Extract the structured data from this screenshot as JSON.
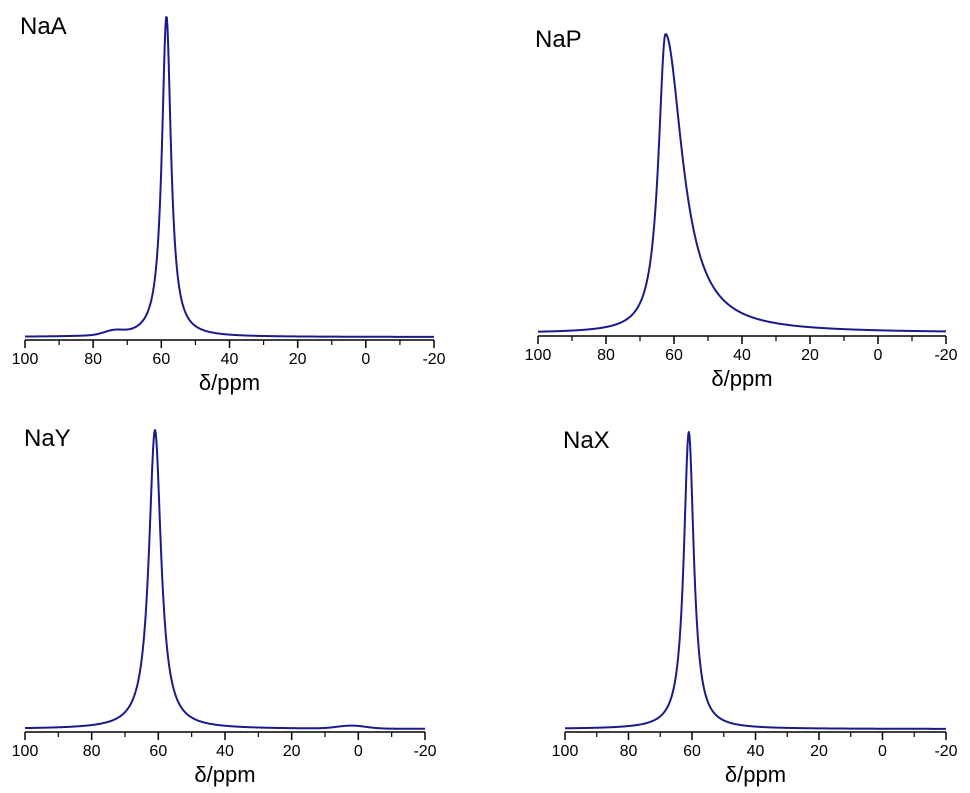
{
  "chart_data": [
    {
      "type": "line",
      "panel_label": "NaA",
      "xlabel": "δ/ppm",
      "xlim": [
        100,
        -20
      ],
      "xticks": [
        100,
        80,
        60,
        40,
        20,
        0,
        -20
      ],
      "x_reversed": true,
      "y_axis_shown": false,
      "line_color": "#1a1a8c",
      "peak": {
        "position_ppm": 58.5,
        "hwhm_ppm": 1.6,
        "height": 1.0
      },
      "baseline": 0.0,
      "shoulders": [
        {
          "position_ppm": 74,
          "width_ppm": 4,
          "height": 0.012
        }
      ]
    },
    {
      "type": "line",
      "panel_label": "NaP",
      "xlabel": "δ/ppm",
      "xlim": [
        100,
        -20
      ],
      "xticks": [
        100,
        80,
        60,
        40,
        20,
        0,
        -20
      ],
      "x_reversed": true,
      "y_axis_shown": false,
      "line_color": "#1a1a8c",
      "peak": {
        "position_ppm": 62.5,
        "hwhm_left_ppm": 2.5,
        "hwhm_right_ppm": 6.0,
        "height": 1.0
      },
      "baseline": 0.0,
      "shoulders": []
    },
    {
      "type": "line",
      "panel_label": "NaY",
      "xlabel": "δ/ppm",
      "xlim": [
        100,
        -20
      ],
      "xticks": [
        100,
        80,
        60,
        40,
        20,
        0,
        -20
      ],
      "x_reversed": true,
      "y_axis_shown": false,
      "line_color": "#1a1a8c",
      "peak": {
        "position_ppm": 61,
        "hwhm_ppm": 2.2,
        "height": 1.0
      },
      "baseline": 0.0,
      "shoulders": [
        {
          "position_ppm": 2,
          "width_ppm": 6,
          "height": 0.01
        }
      ]
    },
    {
      "type": "line",
      "panel_label": "NaX",
      "xlabel": "δ/ppm",
      "xlim": [
        100,
        -20
      ],
      "xticks": [
        100,
        80,
        60,
        40,
        20,
        0,
        -20
      ],
      "x_reversed": true,
      "y_axis_shown": false,
      "line_color": "#1a1a8c",
      "peak": {
        "position_ppm": 61,
        "hwhm_ppm": 1.9,
        "height": 1.0
      },
      "baseline": 0.0,
      "shoulders": []
    }
  ]
}
